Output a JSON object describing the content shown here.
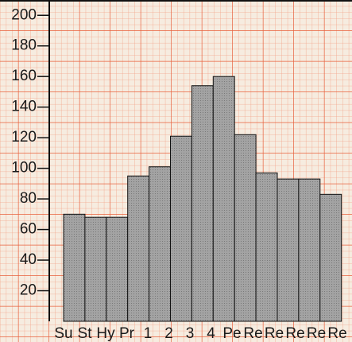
{
  "chart_data": {
    "type": "bar",
    "categories": [
      "Su",
      "St",
      "Hy",
      "Pr",
      "1",
      "2",
      "3",
      "4",
      "Pe",
      "Re",
      "Re",
      "Re",
      "Re",
      "Re"
    ],
    "values": [
      70,
      68,
      68,
      95,
      101,
      121,
      154,
      160,
      122,
      97,
      93,
      93,
      83,
      null
    ],
    "color": "#9c9c9c",
    "ylim": [
      0,
      210
    ],
    "yticks": [
      20,
      40,
      60,
      80,
      100,
      120,
      140,
      160,
      180,
      200
    ],
    "grid": true
  }
}
